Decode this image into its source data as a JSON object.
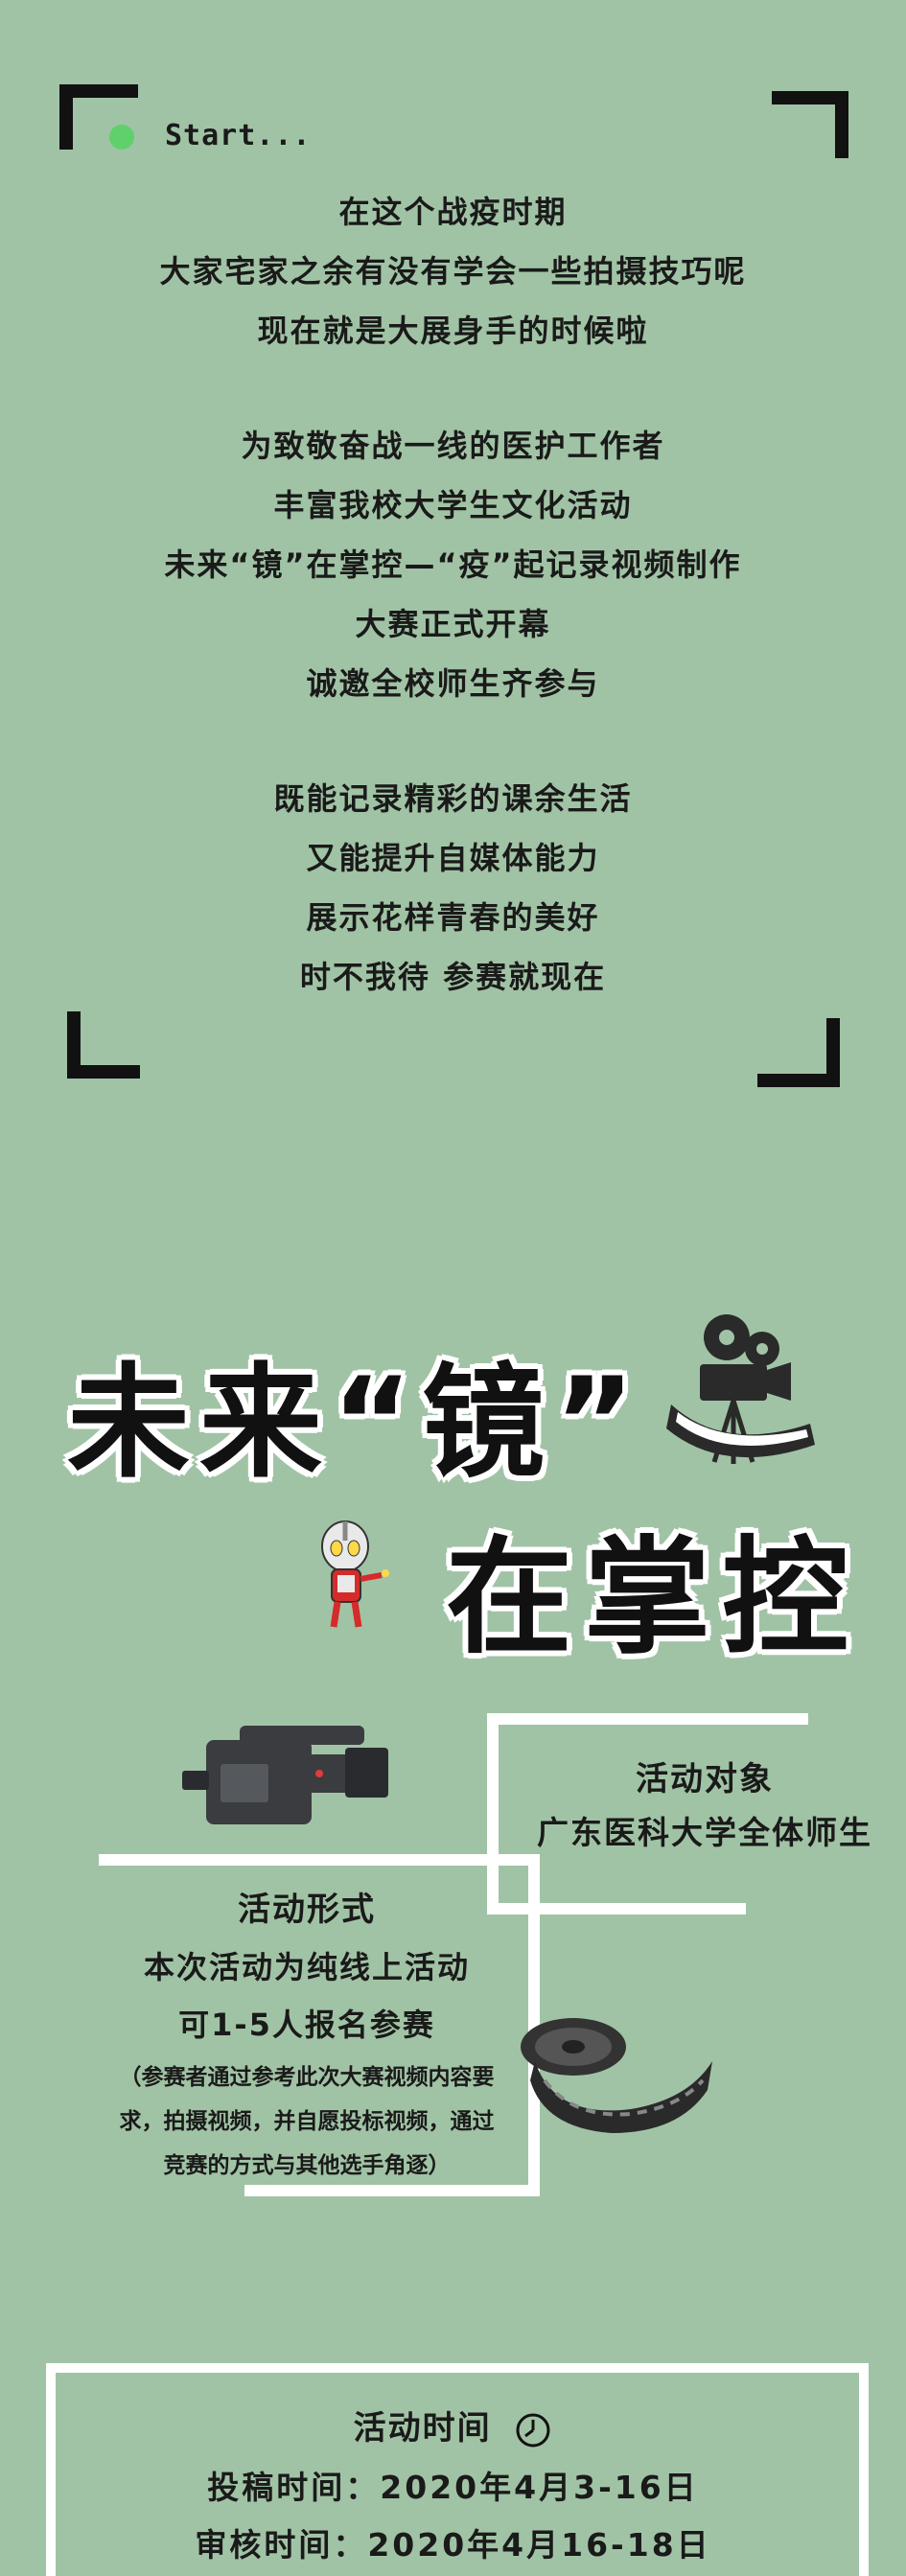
{
  "start": {
    "label": "Start..."
  },
  "intro": {
    "para1": [
      "在这个战疫时期",
      "大家宅家之余有没有学会一些拍摄技巧呢",
      "现在就是大展身手的时候啦"
    ],
    "para2": [
      "为致敬奋战一线的医护工作者",
      "丰富我校大学生文化活动",
      "未来“镜”在掌控—“疫”起记录视频制作",
      "大赛正式开幕",
      "诚邀全校师生齐参与"
    ],
    "para3": [
      "既能记录精彩的课余生活",
      "又能提升自媒体能力",
      "展示花样青春的美好",
      "时不我待 参赛就现在"
    ]
  },
  "title": {
    "line1": "未来“镜”",
    "line2": "在掌控"
  },
  "target": {
    "heading": "活动对象",
    "body": "广东医科大学全体师生"
  },
  "form": {
    "heading": "活动形式",
    "line1": "本次活动为纯线上活动",
    "line2": "可1-5人报名参赛",
    "note1": "（参赛者通过参考此次大赛视频内容要",
    "note2": "求，拍摄视频，并自愿投标视频，通过",
    "note3": "竞赛的方式与其他选手角逐）"
  },
  "schedule": {
    "heading": "活动时间",
    "submit": "投稿时间：2020年4月3-16日",
    "review": "审核时间：2020年4月16-18日"
  },
  "colors": {
    "background": "#a1c3a5",
    "accent_dot": "#5fd16a",
    "frame": "#111111",
    "lines": "#ffffff"
  },
  "icons": [
    "projector-icon",
    "hero-character-icon",
    "camcorder-icon",
    "film-reel-icon",
    "clock-icon"
  ]
}
